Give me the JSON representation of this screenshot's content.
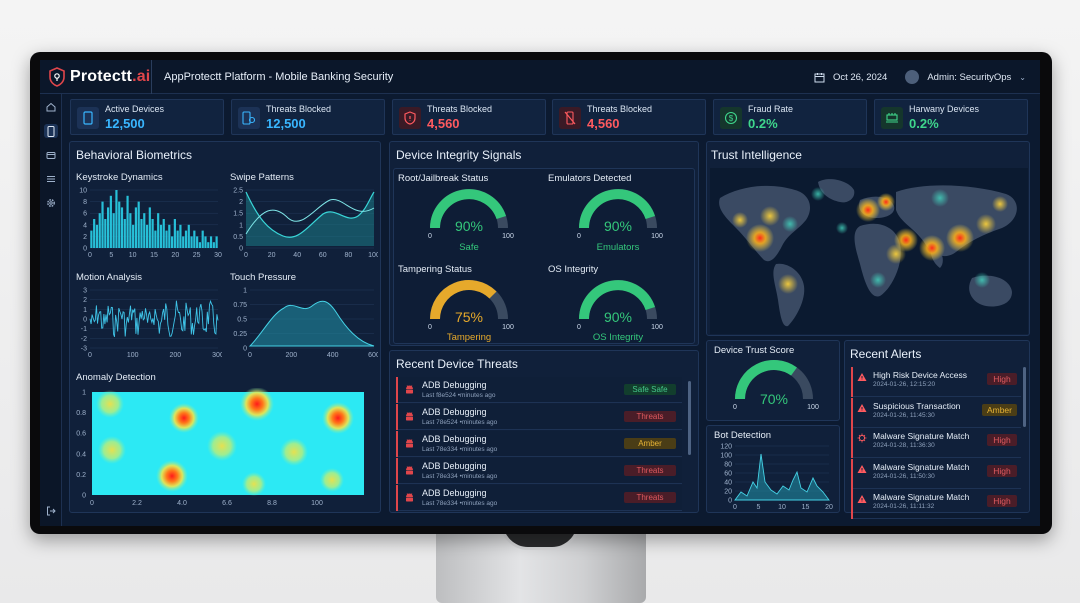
{
  "app": {
    "logo_main": "Protectt",
    "logo_suffix": ".ai",
    "title": "AppProtectt Platform - Mobile Banking Security",
    "date": "Oct 26, 2024",
    "user": "Admin: SecurityOps"
  },
  "kpis": [
    {
      "label": "Active Devices",
      "value": "12,500",
      "color": "#39b6ff",
      "icon": "phone-icon"
    },
    {
      "label": "Threats Blocked",
      "value": "12,500",
      "color": "#39b6ff",
      "icon": "phone-shield-icon"
    },
    {
      "label": "Threats Blocked",
      "value": "4,560",
      "color": "#ff5a5f",
      "icon": "shield-alert-icon"
    },
    {
      "label": "Threats Blocked",
      "value": "4,560",
      "color": "#ff5a5f",
      "icon": "phone-off-icon"
    },
    {
      "label": "Fraud Rate",
      "value": "0.2%",
      "color": "#3fd68c",
      "icon": "dollar-icon"
    },
    {
      "label": "Harwany Devices",
      "value": "0.2%",
      "color": "#3fd68c",
      "icon": "hardware-icon"
    }
  ],
  "biometrics": {
    "title": "Behavioral Biometrics",
    "keystroke": {
      "title": "Keystroke Dynamics",
      "x_ticks": [
        "0",
        "5",
        "10",
        "15",
        "20",
        "25",
        "30"
      ],
      "y_ticks": [
        "0",
        "2",
        "4",
        "6",
        "8",
        "10"
      ]
    },
    "swipe": {
      "title": "Swipe Patterns",
      "x_ticks": [
        "0",
        "20",
        "40",
        "60",
        "80",
        "100"
      ],
      "y_ticks": [
        "0",
        "0.5",
        "1",
        "1.5",
        "2",
        "2.5"
      ]
    },
    "motion": {
      "title": "Motion Analysis",
      "x_ticks": [
        "0",
        "100",
        "200",
        "300"
      ],
      "y_ticks": [
        "-3",
        "-2",
        "-1",
        "0",
        "1",
        "2",
        "3"
      ]
    },
    "touch": {
      "title": "Touch Pressure",
      "x_ticks": [
        "0",
        "200",
        "400",
        "600"
      ],
      "y_ticks": [
        "0",
        "0.25",
        "0.5",
        "0.75",
        "1"
      ]
    },
    "anomaly": {
      "title": "Anomaly Detection",
      "x_ticks": [
        "0",
        "2.2",
        "4.0",
        "6.6",
        "8.8",
        "100"
      ],
      "y_ticks": [
        "0",
        "0.2",
        "0.4",
        "0.6",
        "0.8",
        "1"
      ]
    }
  },
  "integrity": {
    "title": "Device Integrity Signals",
    "gauges": [
      {
        "title": "Root/Jailbreak Status",
        "value": "90%",
        "pct": 0.9,
        "label": "Safe",
        "color": "#34c77b",
        "min": "0",
        "max": "100"
      },
      {
        "title": "Emulators Detected",
        "value": "90%",
        "pct": 0.9,
        "label": "Emulators",
        "color": "#34c77b",
        "min": "0",
        "max": "100"
      },
      {
        "title": "Tampering Status",
        "value": "75%",
        "pct": 0.75,
        "label": "Tampering",
        "color": "#e6a92b",
        "min": "0",
        "max": "100"
      },
      {
        "title": "OS Integrity",
        "value": "90%",
        "pct": 0.9,
        "label": "OS Integrity",
        "color": "#34c77b",
        "min": "0",
        "max": "100"
      }
    ]
  },
  "threats": {
    "title": "Recent Device Threats",
    "rows": [
      {
        "name": "ADB Debugging",
        "sub": "Last f8e524 •minutes ago",
        "badge": "Safe Safe",
        "level": "green"
      },
      {
        "name": "ADB Debugging",
        "sub": "Last 78e524 •minutes ago",
        "badge": "Threats",
        "level": "red"
      },
      {
        "name": "ADB Debugging",
        "sub": "Last 78e334 •minutes ago",
        "badge": "Amber",
        "level": "amber"
      },
      {
        "name": "ADB Debugging",
        "sub": "Last 78e334 •minutes ago",
        "badge": "Threats",
        "level": "red"
      },
      {
        "name": "ADB Debugging",
        "sub": "Last 78e334 •minutes ago",
        "badge": "Threats",
        "level": "red"
      }
    ]
  },
  "trust": {
    "title": "Trust Intelligence",
    "score_title": "Device Trust Score",
    "score_value": "70%",
    "score_pct": 0.7,
    "score_min": "0",
    "score_max": "100",
    "bot_title": "Bot Detection",
    "bot_x_ticks": [
      "0",
      "5",
      "10",
      "15",
      "20"
    ],
    "bot_y_ticks": [
      "0",
      "20",
      "40",
      "60",
      "80",
      "100",
      "120"
    ]
  },
  "alerts": {
    "title": "Recent Alerts",
    "rows": [
      {
        "name": "High Risk Device Access",
        "time": "2024-01-26, 12:15:20",
        "badge": "High",
        "level": "red",
        "icon": "warning-icon"
      },
      {
        "name": "Suspicious Transaction",
        "time": "2024-01-26, 11:45:30",
        "badge": "Amber",
        "level": "amber",
        "icon": "warning-icon"
      },
      {
        "name": "Malware Signature Match",
        "time": "2024-01-28, 11:36:30",
        "badge": "High",
        "level": "red",
        "icon": "bug-icon"
      },
      {
        "name": "Malware Signature Match",
        "time": "2024-01-26, 11:50:30",
        "badge": "High",
        "level": "red",
        "icon": "warning-icon"
      },
      {
        "name": "Malware Signature Match",
        "time": "2024-01-26, 11:11:32",
        "badge": "High",
        "level": "red",
        "icon": "warning-icon"
      }
    ]
  }
}
